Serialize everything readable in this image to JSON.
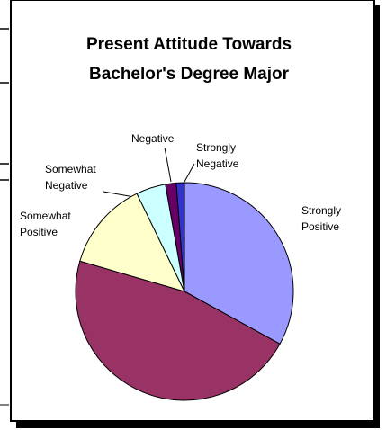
{
  "chart_data": {
    "type": "pie",
    "title": [
      "Present Attitude Towards",
      "Bachelor's Degree Major"
    ],
    "categories": [
      "Strongly Positive",
      null,
      "Somewhat Positive",
      "Somewhat Negative",
      "Negative",
      "Strongly Negative"
    ],
    "values": [
      33,
      46.5,
      13.3,
      4.4,
      1.6,
      1.2
    ],
    "colors": [
      "#9999ff",
      "#993366",
      "#ffffcc",
      "#ccffff",
      "#660066",
      "#3333cc"
    ]
  }
}
